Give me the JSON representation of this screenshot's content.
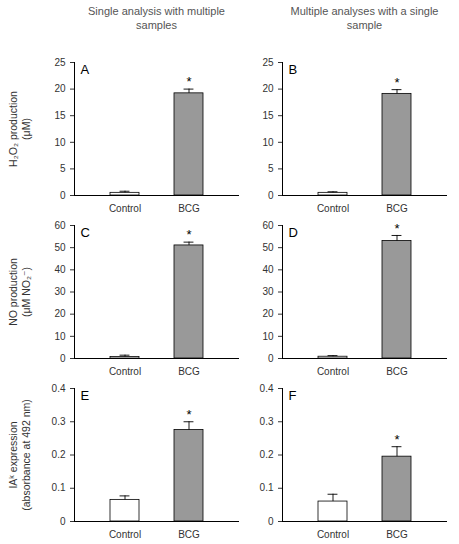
{
  "column_titles": [
    "Single analysis with multiple samples",
    "Multiple analyses with a single sample"
  ],
  "chart_data": [
    {
      "type": "bar",
      "title": "A",
      "y_label": "H₂O₂ production\n(μM)",
      "categories": [
        "Control",
        "BCG"
      ],
      "values": [
        0.5,
        19.2
      ],
      "errors": [
        0.3,
        0.8
      ],
      "colors": [
        "#ffffff",
        "#999999"
      ],
      "ylim": [
        0,
        25
      ],
      "yticks": [
        0,
        5,
        10,
        15,
        20,
        25
      ],
      "annotations": [
        {
          "x": "BCG",
          "text": "*"
        }
      ]
    },
    {
      "type": "bar",
      "title": "B",
      "categories": [
        "Control",
        "BCG"
      ],
      "values": [
        0.5,
        19.1
      ],
      "errors": [
        0.2,
        0.8
      ],
      "colors": [
        "#ffffff",
        "#999999"
      ],
      "ylim": [
        0,
        25
      ],
      "yticks": [
        0,
        5,
        10,
        15,
        20,
        25
      ],
      "annotations": [
        {
          "x": "BCG",
          "text": "*"
        }
      ]
    },
    {
      "type": "bar",
      "title": "C",
      "y_label": "NO production\n(μM NO₂⁻)",
      "categories": [
        "Control",
        "BCG"
      ],
      "values": [
        0.7,
        51
      ],
      "errors": [
        0.8,
        1.5
      ],
      "colors": [
        "#ffffff",
        "#999999"
      ],
      "ylim": [
        0,
        60
      ],
      "yticks": [
        0,
        10,
        20,
        30,
        40,
        50,
        60
      ],
      "annotations": [
        {
          "x": "BCG",
          "text": "*"
        }
      ]
    },
    {
      "type": "bar",
      "title": "D",
      "categories": [
        "Control",
        "BCG"
      ],
      "values": [
        0.8,
        53
      ],
      "errors": [
        0.5,
        2.5
      ],
      "colors": [
        "#ffffff",
        "#999999"
      ],
      "ylim": [
        0,
        60
      ],
      "yticks": [
        0,
        10,
        20,
        30,
        40,
        50,
        60
      ],
      "annotations": [
        {
          "x": "BCG",
          "text": "*"
        }
      ]
    },
    {
      "type": "bar",
      "title": "E",
      "y_label": "IAᵏ expression\n(absorbance at 492 nm)",
      "categories": [
        "Control",
        "BCG"
      ],
      "values": [
        0.065,
        0.275
      ],
      "errors": [
        0.012,
        0.025
      ],
      "colors": [
        "#ffffff",
        "#999999"
      ],
      "ylim": [
        0,
        0.4
      ],
      "yticks": [
        0,
        0.1,
        0.2,
        0.3,
        0.4
      ],
      "annotations": [
        {
          "x": "BCG",
          "text": "*"
        }
      ]
    },
    {
      "type": "bar",
      "title": "F",
      "categories": [
        "Control",
        "BCG"
      ],
      "values": [
        0.06,
        0.195
      ],
      "errors": [
        0.022,
        0.03
      ],
      "colors": [
        "#ffffff",
        "#999999"
      ],
      "ylim": [
        0,
        0.4
      ],
      "yticks": [
        0,
        0.1,
        0.2,
        0.3,
        0.4
      ],
      "annotations": [
        {
          "x": "BCG",
          "text": "*"
        }
      ]
    }
  ]
}
